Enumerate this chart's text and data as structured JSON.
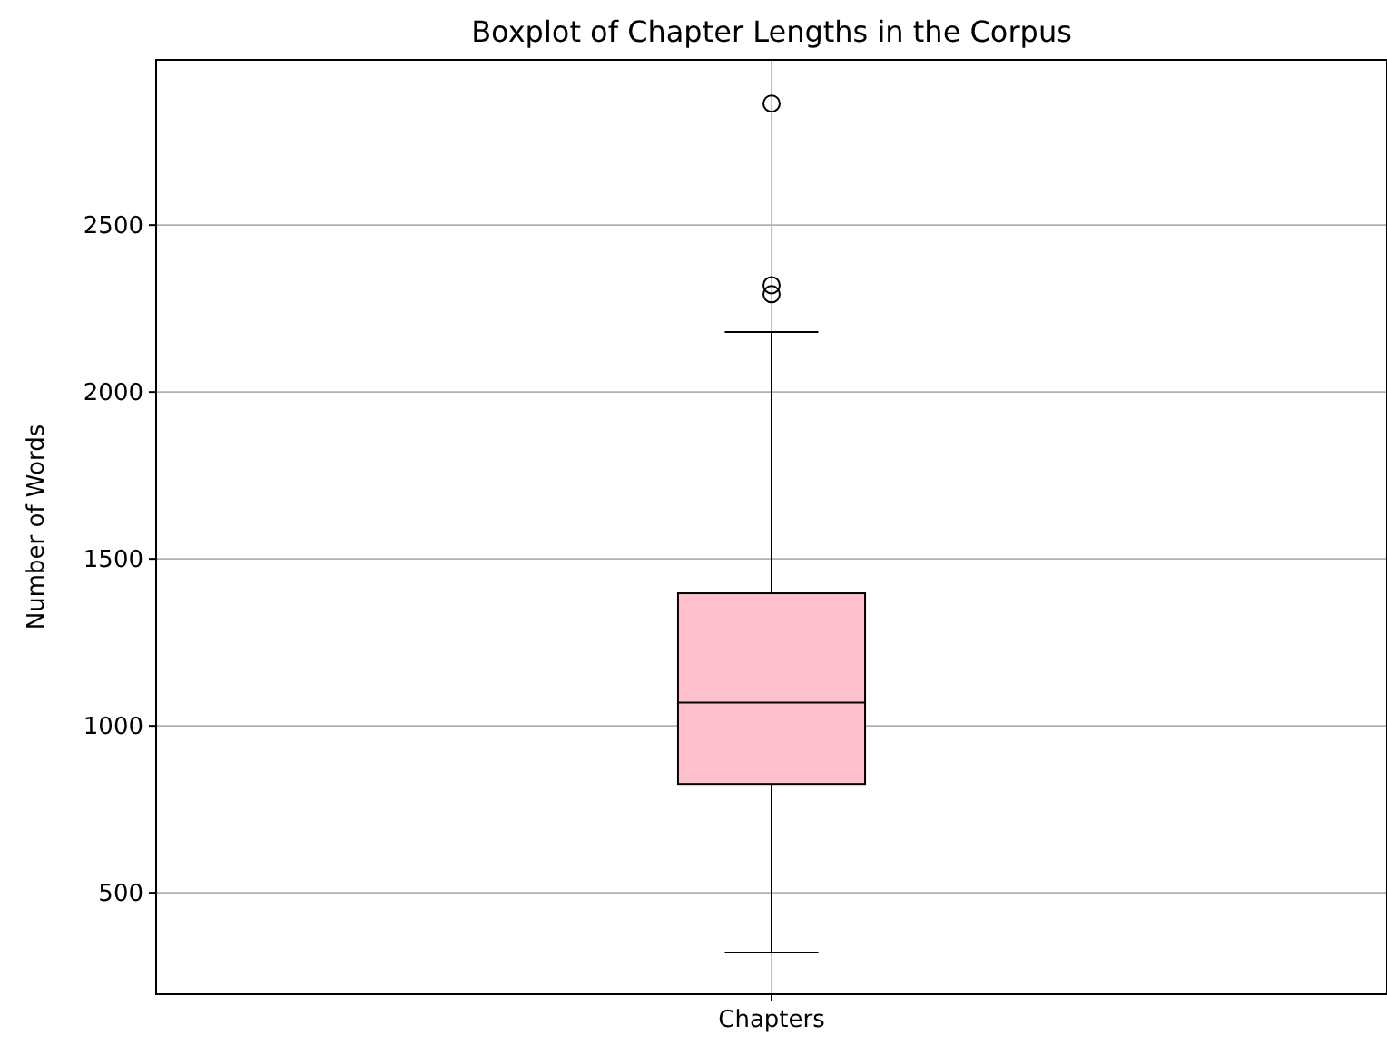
{
  "chart_data": {
    "type": "box",
    "title": "Boxplot of Chapter Lengths in the Corpus",
    "ylabel": "Number of Words",
    "categories": [
      "Chapters"
    ],
    "series": [
      {
        "color": "#ffc0cb",
        "boxes": [
          {
            "low": 321,
            "q1": 826,
            "median": 1070,
            "q3": 1397,
            "high": 2180,
            "outliers": [
              2864,
              2320,
              2293
            ]
          }
        ]
      }
    ],
    "ylim": [
      196,
      2995
    ],
    "yticks": [
      500,
      1000,
      1500,
      2000,
      2500
    ],
    "grid": true
  }
}
